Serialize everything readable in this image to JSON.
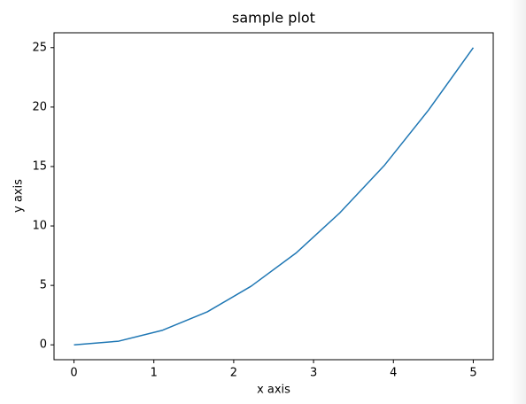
{
  "chart_data": {
    "type": "line",
    "title": "sample plot",
    "x_label": "x axis",
    "y_label": "y axis",
    "x": [
      0,
      0.56,
      1.11,
      1.67,
      2.22,
      2.78,
      3.33,
      3.89,
      4.44,
      5
    ],
    "series": [
      {
        "color": "#1f77b4",
        "values": [
          0,
          0.31,
          1.23,
          2.78,
          4.94,
          7.72,
          11.11,
          15.12,
          19.75,
          25
        ]
      }
    ],
    "xlim": [
      -0.25,
      5.25
    ],
    "ylim": [
      -1.25,
      26.25
    ],
    "xticks": [
      0,
      1,
      2,
      3,
      4,
      5
    ],
    "yticks": [
      0,
      5,
      10,
      15,
      20,
      25
    ],
    "grid": false
  }
}
